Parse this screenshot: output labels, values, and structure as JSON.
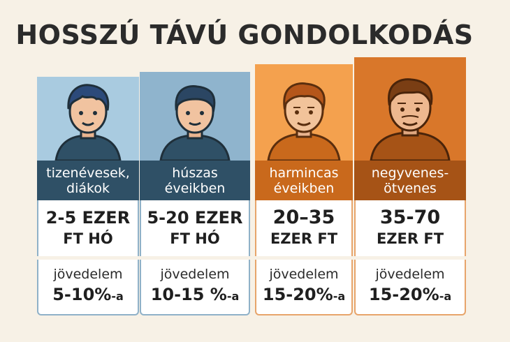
{
  "title": "HOSSZÚ TÁVÚ GONDOLKODÁS",
  "colors": {
    "background": "#f7f1e6",
    "blue_light": "#a9cbe0",
    "blue_dark": "#2f5066",
    "orange_light": "#f4a14e",
    "orange_dark": "#c9691c",
    "brown": "#a65316"
  },
  "columns": [
    {
      "age_label": "tizenévesek,\ndiákok",
      "amount_line1": "2-5 EZER",
      "amount_line2": "FT HÓ",
      "income_label": "jövedelem",
      "percent": "5-10%",
      "suffix": "-a",
      "icon": "teen-boy-icon"
    },
    {
      "age_label": "húszas\néveikben",
      "amount_line1": "5-20 EZER",
      "amount_line2": "FT HÓ",
      "income_label": "jövedelem",
      "percent": "10-15 %",
      "suffix": "-a",
      "icon": "young-man-icon"
    },
    {
      "age_label": "harmincas\néveikben",
      "amount_line1": "20–35",
      "amount_line2": "EZER FT",
      "income_label": "jövedelem",
      "percent": "15-20%",
      "suffix": "-a",
      "icon": "thirties-man-icon"
    },
    {
      "age_label": "negyvenes-\nötvenes",
      "amount_line1": "35-70",
      "amount_line2": "EZER FT",
      "income_label": "jövedelem",
      "percent": "15-20%",
      "suffix": "-a",
      "icon": "middle-aged-man-icon"
    }
  ]
}
